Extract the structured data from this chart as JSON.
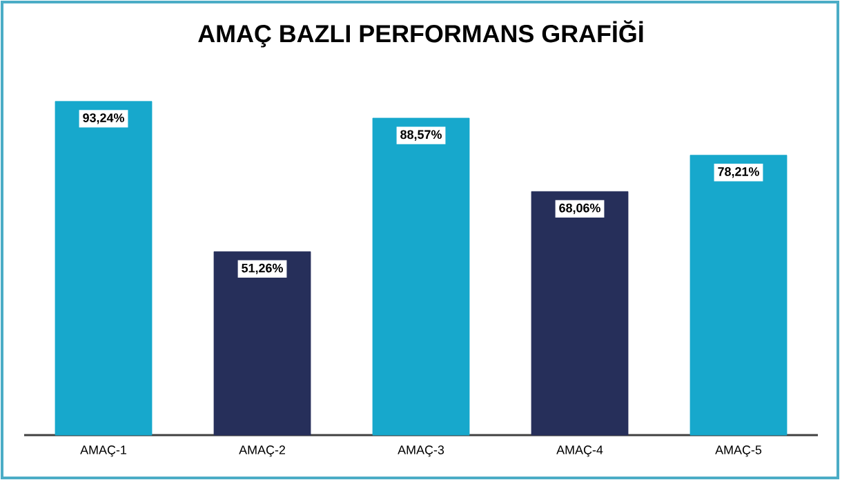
{
  "chart_data": {
    "type": "bar",
    "title": "AMAÇ BAZLI PERFORMANS GRAFİĞİ",
    "categories": [
      "AMAÇ-1",
      "AMAÇ-2",
      "AMAÇ-3",
      "AMAÇ-4",
      "AMAÇ-5"
    ],
    "values": [
      93.24,
      51.26,
      88.57,
      68.06,
      78.21
    ],
    "value_labels": [
      "93,24%",
      "51,26%",
      "88,57%",
      "68,06%",
      "78,21%"
    ],
    "colors": [
      "#17a8cc",
      "#262f5a",
      "#17a8cc",
      "#262f5a",
      "#17a8cc"
    ]
  }
}
